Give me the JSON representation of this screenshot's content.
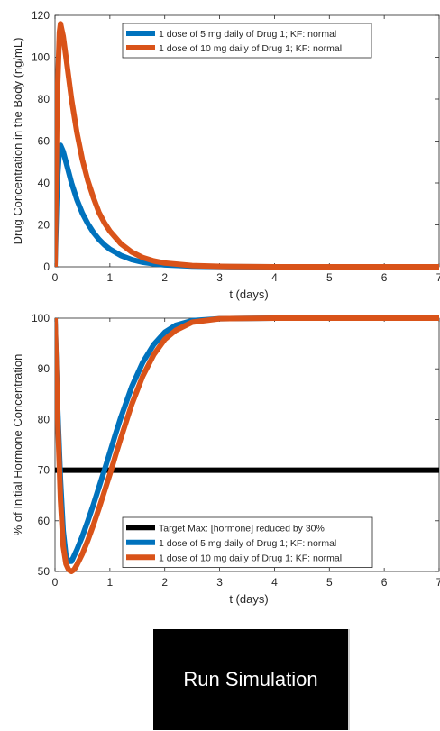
{
  "button": {
    "label": "Run Simulation"
  },
  "chart_data": [
    {
      "type": "line",
      "xlabel": "t (days)",
      "ylabel": "Drug Concentration in the Body (ng/mL)",
      "xlim": [
        0,
        7
      ],
      "ylim": [
        0,
        120
      ],
      "xticks": [
        "0",
        "1",
        "2",
        "3",
        "4",
        "5",
        "6",
        "7"
      ],
      "yticks": [
        "0",
        "20",
        "40",
        "60",
        "80",
        "100",
        "120"
      ],
      "grid": false,
      "legend_position": "top-right",
      "series": [
        {
          "name": "1 dose of 5 mg daily of Drug 1; KF: normal",
          "color": "#0072BD",
          "x": [
            0,
            0.04,
            0.08,
            0.1,
            0.15,
            0.2,
            0.3,
            0.4,
            0.5,
            0.6,
            0.7,
            0.8,
            0.9,
            1.0,
            1.2,
            1.4,
            1.6,
            1.8,
            2.0,
            2.5,
            3,
            4,
            5,
            6,
            7
          ],
          "values": [
            0,
            40,
            56,
            58,
            55,
            50,
            40,
            32,
            25.5,
            20.5,
            16.4,
            13.1,
            10.5,
            8.4,
            5.4,
            3.4,
            2.2,
            1.4,
            0.9,
            0.3,
            0.1,
            0,
            0,
            0,
            0
          ]
        },
        {
          "name": "1 dose of 10 mg daily of Drug 1; KF: normal",
          "color": "#D95319",
          "x": [
            0,
            0.04,
            0.08,
            0.1,
            0.15,
            0.2,
            0.3,
            0.4,
            0.5,
            0.6,
            0.7,
            0.8,
            0.9,
            1.0,
            1.2,
            1.4,
            1.6,
            1.8,
            2.0,
            2.5,
            3,
            4,
            5,
            6,
            7
          ],
          "values": [
            0,
            80,
            112,
            116,
            110,
            100,
            80,
            64,
            51,
            41,
            33,
            26,
            21,
            17,
            11,
            7,
            4.4,
            2.8,
            1.8,
            0.6,
            0.2,
            0,
            0,
            0,
            0
          ]
        }
      ]
    },
    {
      "type": "line",
      "xlabel": "t (days)",
      "ylabel": "% of Initial Hormone Concentration",
      "xlim": [
        0,
        7
      ],
      "ylim": [
        50,
        100
      ],
      "xticks": [
        "0",
        "1",
        "2",
        "3",
        "4",
        "5",
        "6",
        "7"
      ],
      "yticks": [
        "50",
        "60",
        "70",
        "80",
        "90",
        "100"
      ],
      "grid": false,
      "legend_position": "bottom-right",
      "series": [
        {
          "name": "Target Max: [hormone] reduced by 30%",
          "color": "#000000",
          "x": [
            0,
            7
          ],
          "values": [
            70,
            70
          ]
        },
        {
          "name": "1 dose of 5 mg daily of Drug 1; KF: normal",
          "color": "#0072BD",
          "x": [
            0,
            0.05,
            0.1,
            0.15,
            0.2,
            0.25,
            0.3,
            0.4,
            0.5,
            0.6,
            0.7,
            0.8,
            0.9,
            1.0,
            1.1,
            1.2,
            1.4,
            1.6,
            1.8,
            2.0,
            2.2,
            2.5,
            3,
            4,
            5,
            6,
            7
          ],
          "values": [
            100,
            82,
            68,
            58,
            53,
            52,
            52,
            54.3,
            57,
            60,
            63.2,
            66.6,
            70,
            73.5,
            77,
            80.4,
            86.5,
            91.3,
            94.8,
            97.2,
            98.6,
            99.5,
            99.9,
            100,
            100,
            100,
            100
          ]
        },
        {
          "name": "1 dose of 10 mg daily of Drug 1; KF: normal",
          "color": "#D95319",
          "x": [
            0,
            0.05,
            0.1,
            0.15,
            0.2,
            0.25,
            0.3,
            0.35,
            0.4,
            0.5,
            0.6,
            0.7,
            0.8,
            0.9,
            1.0,
            1.1,
            1.2,
            1.4,
            1.6,
            1.8,
            2.0,
            2.2,
            2.5,
            3,
            4,
            5,
            6,
            7
          ],
          "values": [
            100,
            80,
            64,
            55,
            51.5,
            50.3,
            50,
            50.4,
            51.3,
            53.5,
            56.2,
            59.2,
            62.4,
            65.8,
            69.2,
            72.8,
            76.3,
            83,
            88.6,
            92.8,
            95.8,
            97.6,
            99.2,
            99.9,
            100,
            100,
            100,
            100
          ]
        }
      ]
    }
  ]
}
